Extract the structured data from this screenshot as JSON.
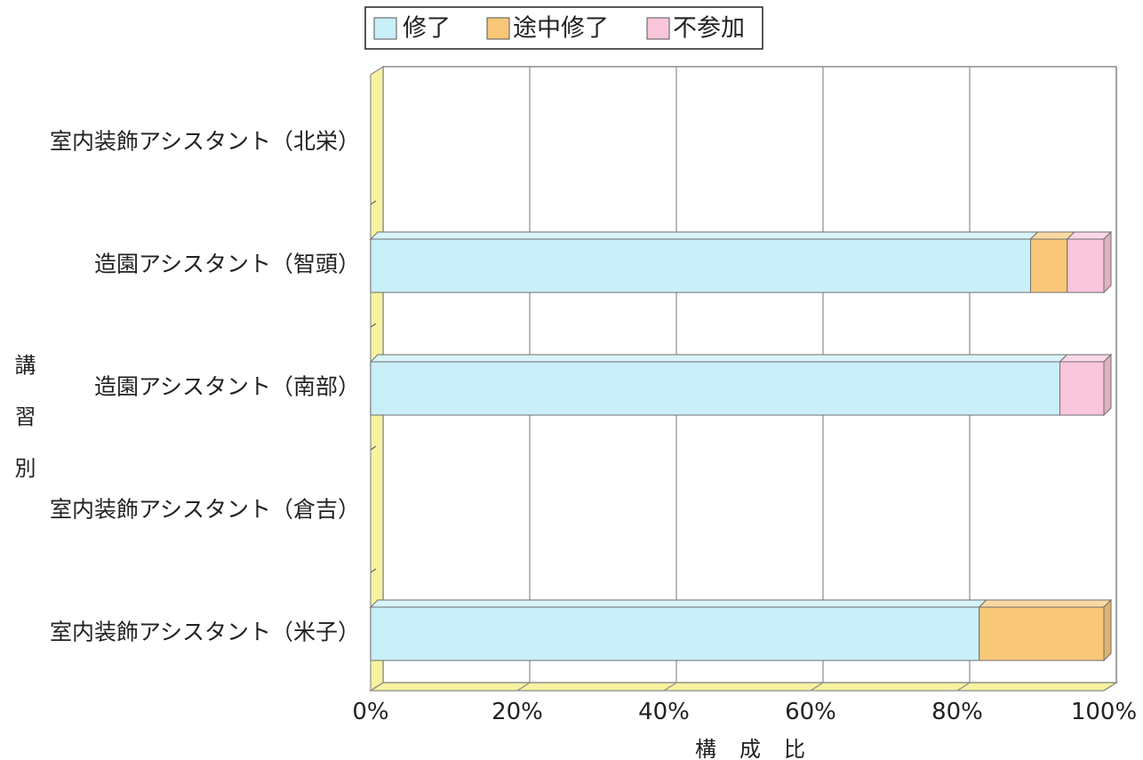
{
  "chart_data": {
    "type": "bar",
    "orientation": "horizontal",
    "stacked": true,
    "three_d": true,
    "categories": [
      "室内装飾アシスタント（北栄）",
      "造園アシスタント（智頭）",
      "造園アシスタント（南部）",
      "室内装飾アシスタント（倉吉）",
      "室内装飾アシスタント（米子）"
    ],
    "series": [
      {
        "name": "修了",
        "values": [
          0,
          90,
          94,
          0,
          83
        ],
        "color": "#c9eff9"
      },
      {
        "name": "途中修了",
        "values": [
          0,
          5,
          0,
          0,
          17
        ],
        "color": "#f8c878"
      },
      {
        "name": "不参加",
        "values": [
          0,
          5,
          6,
          0,
          0
        ],
        "color": "#f9c6dc"
      }
    ],
    "xlabel": "構成比",
    "ylabel": "講習別",
    "xlim": [
      0,
      100
    ],
    "xticks": [
      "0%",
      "20%",
      "40%",
      "60%",
      "80%",
      "100%"
    ],
    "grid": true,
    "legend": "top",
    "wall_color": "#f7f3a0"
  }
}
